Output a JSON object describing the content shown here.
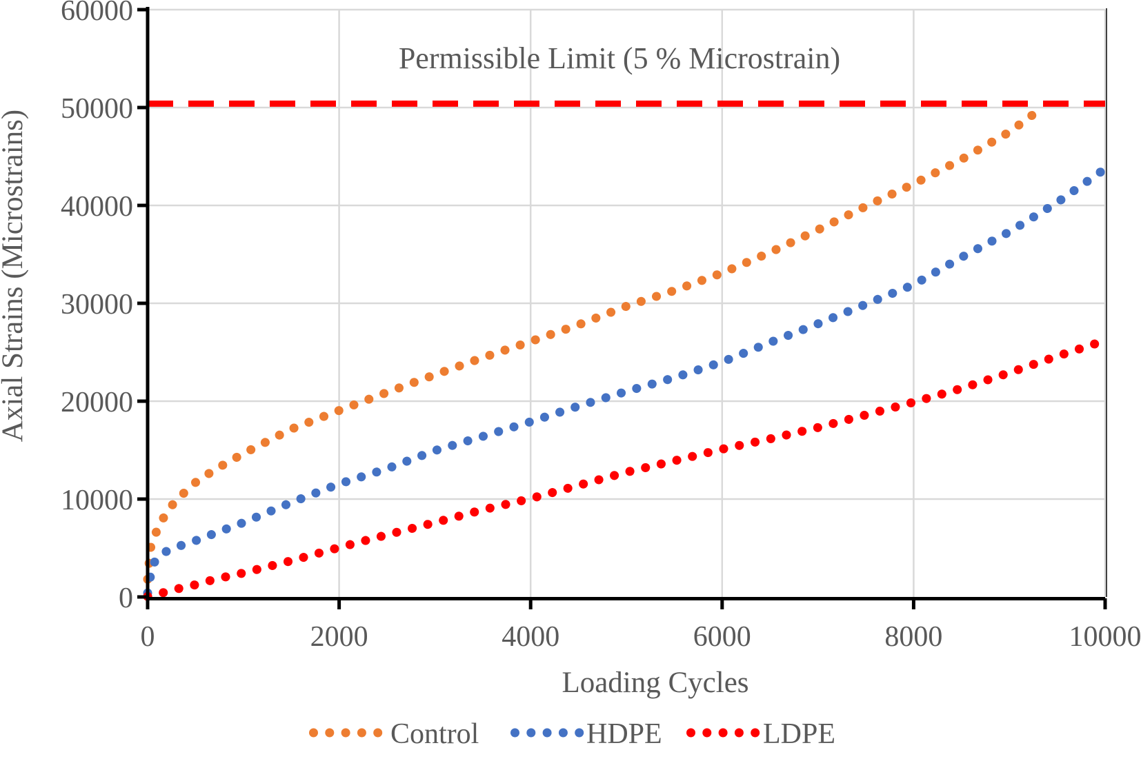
{
  "chart_data": {
    "type": "scatter",
    "marker_style": "round-dotted-line",
    "title": "",
    "xlabel": "Loading Cycles",
    "ylabel": "Axial Strains (Microstrains)",
    "xlim": [
      0,
      10000
    ],
    "ylim": [
      0,
      60000
    ],
    "x_ticks": [
      0,
      2000,
      4000,
      6000,
      8000,
      10000
    ],
    "y_ticks": [
      0,
      10000,
      20000,
      30000,
      40000,
      50000,
      60000
    ],
    "grid": true,
    "legend_position": "bottom",
    "colors": {
      "text": "#595959",
      "grid": "#D9D9D9",
      "plot_border": "#404040",
      "axis": "#000000"
    },
    "annotation": {
      "text": "Permissible Limit (5 % Microstrain)"
    },
    "limit_line": {
      "value": 50400,
      "color": "#FF0000",
      "style": "dashed"
    },
    "series": [
      {
        "name": "Control",
        "color": "#ED7D31",
        "points": [
          [
            0,
            1800
          ],
          [
            30,
            5000
          ],
          [
            100,
            6900
          ],
          [
            200,
            8700
          ],
          [
            300,
            9900
          ],
          [
            500,
            11700
          ],
          [
            700,
            13000
          ],
          [
            1000,
            14650
          ],
          [
            1500,
            17150
          ],
          [
            2000,
            19050
          ],
          [
            2500,
            20900
          ],
          [
            3000,
            22700
          ],
          [
            3500,
            24450
          ],
          [
            4000,
            26100
          ],
          [
            4500,
            27800
          ],
          [
            5000,
            29700
          ],
          [
            5500,
            31300
          ],
          [
            6000,
            33100
          ],
          [
            6500,
            35200
          ],
          [
            7000,
            37500
          ],
          [
            7500,
            39900
          ],
          [
            8000,
            42200
          ],
          [
            8500,
            44700
          ],
          [
            9000,
            47500
          ],
          [
            9250,
            49300
          ]
        ]
      },
      {
        "name": "HDPE",
        "color": "#4472C4",
        "points": [
          [
            0,
            400
          ],
          [
            50,
            3300
          ],
          [
            150,
            4450
          ],
          [
            300,
            5100
          ],
          [
            500,
            5750
          ],
          [
            700,
            6500
          ],
          [
            1000,
            7600
          ],
          [
            1500,
            9650
          ],
          [
            2000,
            11550
          ],
          [
            2500,
            13100
          ],
          [
            3000,
            14950
          ],
          [
            3500,
            16400
          ],
          [
            4000,
            17900
          ],
          [
            4500,
            19500
          ],
          [
            5000,
            21000
          ],
          [
            5500,
            22400
          ],
          [
            6000,
            24000
          ],
          [
            6500,
            26000
          ],
          [
            7000,
            27900
          ],
          [
            7500,
            29900
          ],
          [
            8000,
            31900
          ],
          [
            8500,
            34700
          ],
          [
            9000,
            37300
          ],
          [
            9500,
            40300
          ],
          [
            9950,
            43400
          ]
        ]
      },
      {
        "name": "LDPE",
        "color": "#FF0000",
        "points": [
          [
            0,
            50
          ],
          [
            150,
            400
          ],
          [
            300,
            800
          ],
          [
            500,
            1250
          ],
          [
            700,
            1800
          ],
          [
            1000,
            2450
          ],
          [
            1500,
            3700
          ],
          [
            2000,
            5050
          ],
          [
            2500,
            6350
          ],
          [
            3000,
            7600
          ],
          [
            3500,
            8900
          ],
          [
            4000,
            10050
          ],
          [
            4500,
            11400
          ],
          [
            5000,
            12750
          ],
          [
            5500,
            13900
          ],
          [
            6000,
            15100
          ],
          [
            6500,
            16150
          ],
          [
            7000,
            17300
          ],
          [
            7500,
            18600
          ],
          [
            8000,
            19900
          ],
          [
            8500,
            21300
          ],
          [
            9000,
            22900
          ],
          [
            9500,
            24600
          ],
          [
            10000,
            26200
          ]
        ]
      }
    ]
  }
}
